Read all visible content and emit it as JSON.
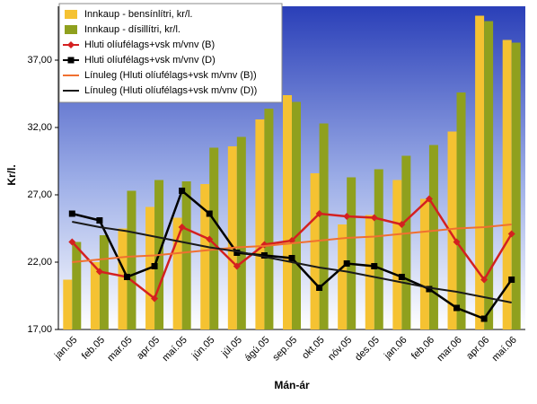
{
  "chart_data": {
    "type": "bar",
    "x_label": "Mán-ár",
    "y_label": "Kr/l.",
    "categories": [
      "jan.05",
      "feb.05",
      "mar.05",
      "apr.05",
      "maí.05",
      "jún.05",
      "júl.05",
      "ágú.05",
      "sep.05",
      "okt.05",
      "nóv.05",
      "des.05",
      "jan.06",
      "feb.06",
      "mar.06",
      "apr.06",
      "maí.06"
    ],
    "series": [
      {
        "name": "Innkaup - bensínlítri, kr/l.",
        "type": "bar",
        "color": "#f5c232",
        "values": [
          20.7,
          22.0,
          24.5,
          26.1,
          25.3,
          27.8,
          30.6,
          32.6,
          34.4,
          28.6,
          24.8,
          25.5,
          28.1,
          26.7,
          31.7,
          40.3,
          38.5
        ]
      },
      {
        "name": "Innkaup - dísillítri, kr/l.",
        "type": "bar",
        "color": "#8fa01e",
        "values": [
          23.5,
          24.0,
          27.3,
          28.1,
          28.0,
          30.5,
          31.3,
          33.4,
          33.9,
          32.3,
          28.3,
          28.9,
          29.9,
          30.7,
          34.6,
          39.9,
          38.3
        ]
      },
      {
        "name": "Hluti olíufélags+vsk m/vnv (B)",
        "type": "line",
        "marker": "diamond",
        "color": "#d42020",
        "values": [
          23.5,
          21.3,
          20.9,
          19.3,
          24.6,
          23.7,
          21.7,
          23.3,
          23.6,
          25.6,
          25.4,
          25.3,
          24.8,
          26.7,
          23.5,
          20.7,
          24.1
        ]
      },
      {
        "name": "Hluti olíufélags+vsk m/vnv (D)",
        "type": "line",
        "marker": "square",
        "color": "#000000",
        "values": [
          25.6,
          25.1,
          20.9,
          21.7,
          27.3,
          25.6,
          22.7,
          22.5,
          22.3,
          20.1,
          21.9,
          21.7,
          20.9,
          20.0,
          18.6,
          17.8,
          20.7
        ]
      },
      {
        "name": "Línuleg (Hluti olíufélags+vsk m/vnv (B))",
        "type": "line",
        "marker": "none",
        "color": "#f07030",
        "values": [
          22.0,
          22.2,
          22.4,
          22.5,
          22.7,
          22.9,
          23.1,
          23.2,
          23.4,
          23.6,
          23.8,
          23.9,
          24.1,
          24.3,
          24.5,
          24.6,
          24.8
        ]
      },
      {
        "name": "Línuleg (Hluti olíufélags+vsk m/vnv (D))",
        "type": "line",
        "marker": "none",
        "color": "#1a1a1a",
        "values": [
          25.0,
          24.6,
          24.3,
          23.9,
          23.5,
          23.1,
          22.8,
          22.4,
          22.0,
          21.6,
          21.3,
          20.9,
          20.5,
          20.1,
          19.8,
          19.4,
          19.0
        ]
      }
    ],
    "ylim": [
      17,
      41
    ],
    "yticks": [
      {
        "value": 17,
        "label": "17,00"
      },
      {
        "value": 22,
        "label": "22,00"
      },
      {
        "value": 27,
        "label": "27,00"
      },
      {
        "value": 32,
        "label": "32,00"
      },
      {
        "value": 37,
        "label": "37,00"
      }
    ],
    "legend": "top-left"
  }
}
